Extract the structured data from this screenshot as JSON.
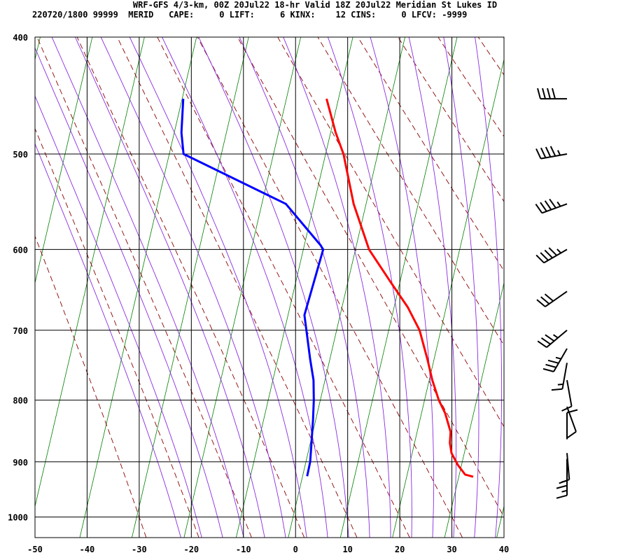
{
  "header": {
    "title": "WRF-GFS 4/3-km, 00Z 20Jul22 18-hr Valid 18Z 20Jul22 Meridian St Lukes ID",
    "stats": "220720/1800 99999  MERID   CAPE:     0 LIFT:     6 KINX:    12 CINS:     0 LFCV: -9999"
  },
  "colors": {
    "temperature": "#ff0000",
    "dewpoint": "#0000ff",
    "dry_adiabat": "#8b0000",
    "moist_adiabat": "#8a2be2",
    "isotherm": "#008000",
    "grid": "#000000",
    "wind_barb": "#000000"
  },
  "chart_data": {
    "type": "skew-t",
    "y_axis": {
      "scale": "log",
      "ticks": [
        400,
        500,
        600,
        700,
        800,
        900,
        1000
      ],
      "range": [
        1040,
        400
      ]
    },
    "x_axis": {
      "ticks": [
        -50,
        -40,
        -30,
        -20,
        -10,
        0,
        10,
        20,
        30,
        40
      ],
      "range": [
        -50,
        40
      ]
    },
    "skew_per_100hPa_C": 3.5,
    "grid": true,
    "temperature": [
      {
        "p": 926,
        "t": 31.5
      },
      {
        "p": 922,
        "t": 29.8
      },
      {
        "p": 905,
        "t": 27.8
      },
      {
        "p": 885,
        "t": 25.9
      },
      {
        "p": 868,
        "t": 25.0
      },
      {
        "p": 850,
        "t": 24.5
      },
      {
        "p": 820,
        "t": 22.4
      },
      {
        "p": 800,
        "t": 20.5
      },
      {
        "p": 770,
        "t": 18.2
      },
      {
        "p": 740,
        "t": 16.2
      },
      {
        "p": 700,
        "t": 13.3
      },
      {
        "p": 670,
        "t": 10.0
      },
      {
        "p": 640,
        "t": 5.8
      },
      {
        "p": 600,
        "t": 0.1
      },
      {
        "p": 550,
        "t": -4.6
      },
      {
        "p": 500,
        "t": -8.3
      },
      {
        "p": 480,
        "t": -10.5
      },
      {
        "p": 450,
        "t": -13.3
      }
    ],
    "dewpoint": [
      {
        "p": 925,
        "t": -0.4
      },
      {
        "p": 900,
        "t": -0.7
      },
      {
        "p": 870,
        "t": -1.5
      },
      {
        "p": 830,
        "t": -2.6
      },
      {
        "p": 800,
        "t": -3.5
      },
      {
        "p": 770,
        "t": -4.6
      },
      {
        "p": 740,
        "t": -6.3
      },
      {
        "p": 680,
        "t": -9.5
      },
      {
        "p": 600,
        "t": -8.7
      },
      {
        "p": 595,
        "t": -9.4
      },
      {
        "p": 550,
        "t": -17.6
      },
      {
        "p": 500,
        "t": -39.0
      },
      {
        "p": 480,
        "t": -40.1
      },
      {
        "p": 450,
        "t": -40.8
      }
    ],
    "wind_barbs": [
      {
        "p": 450,
        "dir": 270,
        "kt": 40
      },
      {
        "p": 500,
        "dir": 260,
        "kt": 45
      },
      {
        "p": 550,
        "dir": 250,
        "kt": 45
      },
      {
        "p": 600,
        "dir": 240,
        "kt": 45
      },
      {
        "p": 650,
        "dir": 235,
        "kt": 30
      },
      {
        "p": 700,
        "dir": 230,
        "kt": 35
      },
      {
        "p": 725,
        "dir": 210,
        "kt": 35
      },
      {
        "p": 745,
        "dir": 190,
        "kt": 15
      },
      {
        "p": 770,
        "dir": 170,
        "kt": 10
      },
      {
        "p": 810,
        "dir": 160,
        "kt": 10
      },
      {
        "p": 862,
        "dir": 0,
        "kt": 10
      },
      {
        "p": 885,
        "dir": 175,
        "kt": 10
      },
      {
        "p": 895,
        "dir": 180,
        "kt": 15
      },
      {
        "p": 912,
        "dir": 180,
        "kt": 15
      }
    ]
  }
}
